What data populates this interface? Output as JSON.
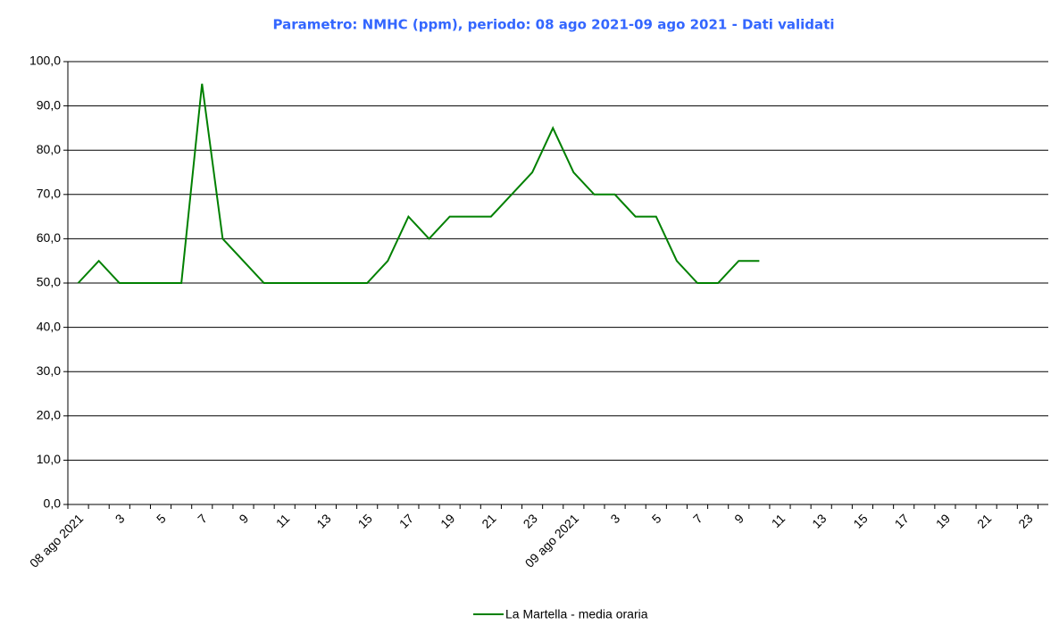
{
  "chart_data": {
    "type": "line",
    "title": "Parametro: NMHC (ppm), periodo: 08 ago 2021-09 ago 2021 - Dati validati",
    "categories": [
      "08 ago 2021",
      null,
      "3",
      null,
      "5",
      null,
      "7",
      null,
      "9",
      null,
      "11",
      null,
      "13",
      null,
      "15",
      null,
      "17",
      null,
      "19",
      null,
      "21",
      null,
      "23",
      null,
      "09 ago 2021",
      null,
      "3",
      null,
      "5",
      null,
      "7",
      null,
      "9",
      null,
      "11",
      null,
      "13",
      null,
      "15",
      null,
      "17",
      null,
      "19",
      null,
      "21",
      null,
      "23",
      null
    ],
    "series": [
      {
        "name": "La Martella - media oraria",
        "color": "#008000",
        "values": [
          50,
          55,
          50,
          50,
          50,
          50,
          95,
          60,
          55,
          50,
          50,
          50,
          50,
          50,
          50,
          55,
          65,
          60,
          65,
          65,
          65,
          70,
          75,
          85,
          75,
          70,
          70,
          65,
          65,
          55,
          50,
          50,
          55,
          55,
          null,
          null,
          null,
          null,
          null,
          null,
          null,
          null,
          null,
          null,
          null,
          null,
          null,
          null
        ]
      }
    ],
    "ylim": [
      0,
      100
    ],
    "yticks": [
      {
        "value": 0,
        "label": "0,0"
      },
      {
        "value": 10,
        "label": "10,0"
      },
      {
        "value": 20,
        "label": "20,0"
      },
      {
        "value": 30,
        "label": "30,0"
      },
      {
        "value": 40,
        "label": "40,0"
      },
      {
        "value": 50,
        "label": "50,0"
      },
      {
        "value": 60,
        "label": "60,0"
      },
      {
        "value": 70,
        "label": "70,0"
      },
      {
        "value": 80,
        "label": "80,0"
      },
      {
        "value": 90,
        "label": "90,0"
      },
      {
        "value": 100,
        "label": "100,0"
      }
    ],
    "grid": true,
    "legend": "bottom"
  }
}
